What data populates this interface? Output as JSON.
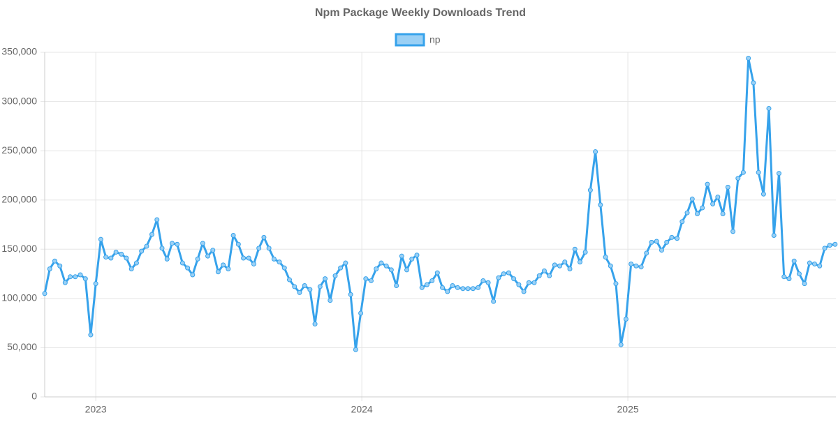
{
  "chart_data": {
    "type": "line",
    "title": "Npm Package Weekly Downloads Trend",
    "x": [
      2022.808,
      2022.827,
      2022.846,
      2022.865,
      2022.885,
      2022.904,
      2022.923,
      2022.942,
      2022.961,
      2022.981,
      2023.0,
      2023.019,
      2023.038,
      2023.057,
      2023.076,
      2023.096,
      2023.115,
      2023.134,
      2023.153,
      2023.172,
      2023.191,
      2023.211,
      2023.23,
      2023.249,
      2023.268,
      2023.287,
      2023.306,
      2023.326,
      2023.345,
      2023.364,
      2023.383,
      2023.402,
      2023.421,
      2023.44,
      2023.46,
      2023.479,
      2023.498,
      2023.517,
      2023.536,
      2023.555,
      2023.575,
      2023.594,
      2023.613,
      2023.632,
      2023.651,
      2023.67,
      2023.69,
      2023.709,
      2023.728,
      2023.747,
      2023.766,
      2023.785,
      2023.805,
      2023.824,
      2023.843,
      2023.862,
      2023.881,
      2023.9,
      2023.92,
      2023.939,
      2023.958,
      2023.977,
      2023.996,
      2024.015,
      2024.035,
      2024.054,
      2024.073,
      2024.092,
      2024.111,
      2024.13,
      2024.15,
      2024.169,
      2024.188,
      2024.207,
      2024.226,
      2024.245,
      2024.264,
      2024.284,
      2024.303,
      2024.322,
      2024.341,
      2024.36,
      2024.38,
      2024.399,
      2024.418,
      2024.437,
      2024.456,
      2024.475,
      2024.495,
      2024.514,
      2024.533,
      2024.552,
      2024.571,
      2024.59,
      2024.609,
      2024.628,
      2024.648,
      2024.667,
      2024.686,
      2024.705,
      2024.725,
      2024.744,
      2024.763,
      2024.782,
      2024.801,
      2024.82,
      2024.84,
      2024.859,
      2024.878,
      2024.897,
      2024.916,
      2024.935,
      2024.955,
      2024.974,
      2024.993,
      2025.012,
      2025.031,
      2025.05,
      2025.07,
      2025.089,
      2025.108,
      2025.127,
      2025.146,
      2025.165,
      2025.185,
      2025.204,
      2025.223,
      2025.242,
      2025.261,
      2025.28,
      2025.299,
      2025.319,
      2025.338,
      2025.357,
      2025.376,
      2025.395,
      2025.414,
      2025.434,
      2025.453,
      2025.472,
      2025.491,
      2025.51,
      2025.53,
      2025.549,
      2025.568,
      2025.587,
      2025.606,
      2025.625,
      2025.644,
      2025.664,
      2025.683,
      2025.702,
      2025.721,
      2025.74,
      2025.759,
      2025.779
    ],
    "series": [
      {
        "name": "np",
        "color": "#36a2eb",
        "values": [
          105000,
          130000,
          138000,
          133000,
          116000,
          122000,
          122000,
          124000,
          120000,
          63000,
          115000,
          160000,
          142000,
          141000,
          147000,
          145000,
          141000,
          130000,
          136000,
          148000,
          153000,
          165000,
          180000,
          151000,
          140000,
          156000,
          155000,
          136000,
          131000,
          124000,
          140000,
          156000,
          143000,
          149000,
          127000,
          134000,
          130000,
          164000,
          155000,
          141000,
          141000,
          135000,
          151000,
          162000,
          151000,
          140000,
          137000,
          131000,
          119000,
          112000,
          106000,
          113000,
          109000,
          74000,
          112000,
          120000,
          98000,
          123000,
          131000,
          136000,
          104000,
          48000,
          85000,
          120000,
          118000,
          130000,
          136000,
          133000,
          129000,
          113000,
          143000,
          129000,
          140000,
          144000,
          111000,
          114000,
          118000,
          126000,
          111000,
          107000,
          113000,
          111000,
          110000,
          110000,
          110000,
          111000,
          118000,
          116000,
          97000,
          121000,
          125000,
          126000,
          120000,
          114000,
          107000,
          116000,
          116000,
          123000,
          128000,
          123000,
          134000,
          133000,
          137000,
          130000,
          150000,
          137000,
          147000,
          210000,
          249000,
          195000,
          142000,
          133000,
          115000,
          53000,
          79000,
          135000,
          133000,
          132000,
          146000,
          157000,
          158000,
          149000,
          157000,
          162000,
          161000,
          178000,
          187000,
          201000,
          186000,
          192000,
          216000,
          196000,
          203000,
          186000,
          213000,
          168000,
          222000,
          228000,
          344000,
          319000,
          228000,
          206000,
          293000,
          164000,
          227000,
          122000,
          120000,
          138000,
          125000,
          115000,
          136000,
          135000,
          133000,
          151000,
          154000,
          155000
        ]
      }
    ],
    "xlim": [
      2022.808,
      2025.782
    ],
    "xticks": [
      2023,
      2024,
      2025
    ],
    "ylim": [
      0,
      350000
    ],
    "yticks": [
      0,
      {
        "value": 50000,
        "label": "50,000"
      },
      {
        "value": 100000,
        "label": "100,000"
      },
      {
        "value": 150000,
        "label": "150,000"
      },
      {
        "value": 200000,
        "label": "200,000"
      },
      {
        "value": 250000,
        "label": "250,000"
      },
      {
        "value": 300000,
        "label": "300,000"
      },
      {
        "value": 350000,
        "label": "350,000"
      }
    ],
    "grid": true
  }
}
